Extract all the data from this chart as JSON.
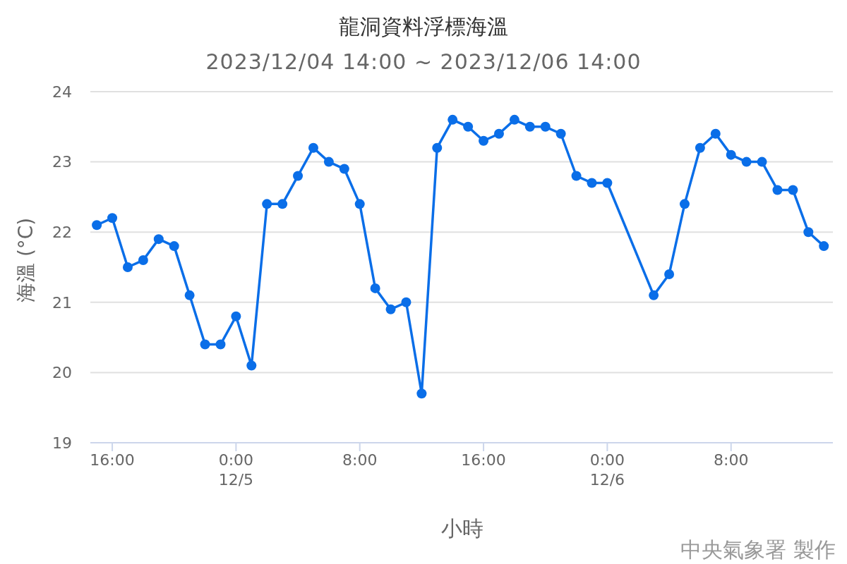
{
  "chart_data": {
    "type": "line",
    "title": "龍洞資料浮標海溫",
    "subtitle": "2023/12/04 14:00 ~ 2023/12/06 14:00",
    "xlabel": "小時",
    "ylabel": "海溫 (°C)",
    "annotations": [
      "中央氣象署 製作"
    ],
    "x": [
      "2023-12-04T15:00",
      "2023-12-04T16:00",
      "2023-12-04T17:00",
      "2023-12-04T18:00",
      "2023-12-04T19:00",
      "2023-12-04T20:00",
      "2023-12-04T21:00",
      "2023-12-04T22:00",
      "2023-12-04T23:00",
      "2023-12-05T00:00",
      "2023-12-05T01:00",
      "2023-12-05T02:00",
      "2023-12-05T03:00",
      "2023-12-05T04:00",
      "2023-12-05T05:00",
      "2023-12-05T06:00",
      "2023-12-05T07:00",
      "2023-12-05T08:00",
      "2023-12-05T09:00",
      "2023-12-05T10:00",
      "2023-12-05T11:00",
      "2023-12-05T12:00",
      "2023-12-05T13:00",
      "2023-12-05T14:00",
      "2023-12-05T15:00",
      "2023-12-05T16:00",
      "2023-12-05T17:00",
      "2023-12-05T18:00",
      "2023-12-05T19:00",
      "2023-12-05T20:00",
      "2023-12-05T21:00",
      "2023-12-05T22:00",
      "2023-12-05T23:00",
      "2023-12-06T00:00",
      "2023-12-06T03:00",
      "2023-12-06T04:00",
      "2023-12-06T05:00",
      "2023-12-06T06:00",
      "2023-12-06T07:00",
      "2023-12-06T08:00",
      "2023-12-06T09:00",
      "2023-12-06T10:00",
      "2023-12-06T11:00",
      "2023-12-06T12:00",
      "2023-12-06T13:00",
      "2023-12-06T14:00"
    ],
    "series": [
      {
        "color": "#0a6ee8",
        "values": [
          22.1,
          22.2,
          21.5,
          21.6,
          21.9,
          21.8,
          21.1,
          20.4,
          20.4,
          20.8,
          20.1,
          22.4,
          22.4,
          22.8,
          23.2,
          23.0,
          22.9,
          22.4,
          21.2,
          20.9,
          21.0,
          19.7,
          23.2,
          23.6,
          23.5,
          23.3,
          23.4,
          23.6,
          23.5,
          23.5,
          23.4,
          22.8,
          22.7,
          22.7,
          21.1,
          21.4,
          22.4,
          23.2,
          23.4,
          23.1,
          23.0,
          23.0,
          22.6,
          22.6,
          22.0,
          21.8
        ]
      }
    ],
    "xlim": [
      "2023-12-04T14:35",
      "2023-12-06T14:35"
    ],
    "xticks": [
      {
        "value": "2023-12-04T16:00",
        "label": "16:00"
      },
      {
        "value": "2023-12-05T00:00",
        "label": "0:00\n12/5"
      },
      {
        "value": "2023-12-05T08:00",
        "label": "8:00"
      },
      {
        "value": "2023-12-05T16:00",
        "label": "16:00"
      },
      {
        "value": "2023-12-06T00:00",
        "label": "0:00\n12/6"
      },
      {
        "value": "2023-12-06T08:00",
        "label": "8:00"
      }
    ],
    "ylim": [
      19,
      24
    ],
    "yticks": [
      19,
      20,
      21,
      22,
      23,
      24
    ],
    "grid": "y",
    "legend": false,
    "marker": "circle",
    "line_style": "solid"
  }
}
